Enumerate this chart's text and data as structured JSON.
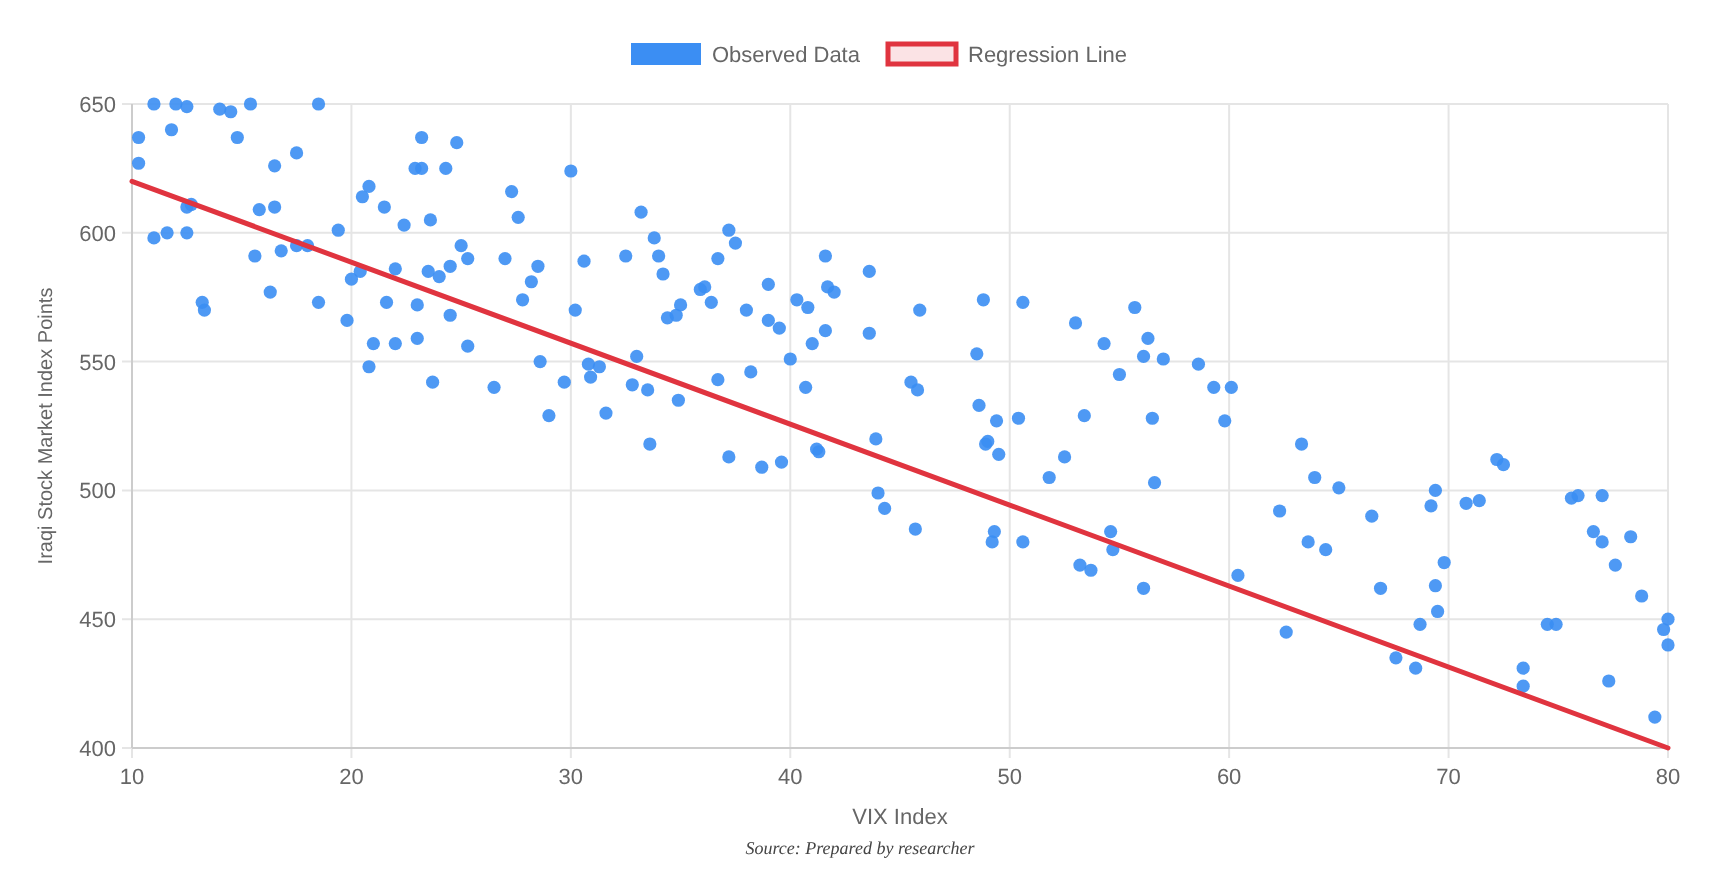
{
  "chart_data": {
    "type": "scatter",
    "xlabel": "VIX Index",
    "ylabel": "Iraqi Stock Market Index Points",
    "annotations": [
      "Source: Prepared by researcher"
    ],
    "xlim": [
      10,
      80
    ],
    "ylim": [
      400,
      650
    ],
    "xticks": [
      10,
      20,
      30,
      40,
      50,
      60,
      70,
      80
    ],
    "yticks": [
      400,
      450,
      500,
      550,
      600,
      650
    ],
    "grid": true,
    "legend": "top",
    "series": [
      {
        "name": "Observed Data",
        "marker": "circle",
        "color": "#3b8ef3",
        "x": [
          10.3,
          10.3,
          11,
          11.6,
          11,
          12,
          12.5,
          11.8,
          12.5,
          12.7,
          12.5,
          13.2,
          13.3,
          14,
          14.5,
          14.8,
          15.4,
          15.6,
          15.8,
          16.5,
          16.5,
          16.3,
          16.8,
          17.5,
          17.5,
          18,
          18.5,
          18.5,
          19.4,
          19.8,
          20,
          20.4,
          20.5,
          20.8,
          20.8,
          21,
          21.5,
          21.6,
          22,
          22,
          22.4,
          22.9,
          23,
          23,
          23.2,
          23.2,
          23.6,
          23.5,
          23.7,
          24,
          24.3,
          24.5,
          24.5,
          24.8,
          25,
          25.3,
          25.3,
          26.5,
          27,
          27.3,
          27.6,
          27.8,
          28.5,
          28.2,
          28.6,
          29,
          29.7,
          30,
          30.2,
          30.6,
          30.8,
          30.9,
          31.3,
          31.6,
          32.5,
          32.8,
          33,
          33.2,
          33.5,
          33.6,
          33.8,
          34,
          34.2,
          34.4,
          34.8,
          34.9,
          35,
          35.9,
          36.1,
          36.4,
          36.7,
          36.7,
          37.2,
          37.2,
          37.5,
          38,
          38.2,
          38.7,
          39,
          39,
          39.5,
          39.6,
          40,
          40.3,
          40.7,
          40.8,
          41,
          41.2,
          41.3,
          41.6,
          41.6,
          41.7,
          42,
          43.6,
          43.6,
          43.9,
          44,
          44.3,
          45.5,
          45.7,
          45.8,
          45.9,
          48.5,
          48.6,
          48.8,
          48.9,
          49.2,
          49,
          49.3,
          49.4,
          49.5,
          50.4,
          50.6,
          50.6,
          51.8,
          52.5,
          53,
          53.2,
          53.4,
          53.7,
          54.3,
          54.6,
          54.7,
          55,
          55.7,
          56.1,
          56.3,
          56.5,
          56.6,
          56.1,
          57,
          58.6,
          59.3,
          59.8,
          60.1,
          60.4,
          62.3,
          62.6,
          63.3,
          63.6,
          63.9,
          64.4,
          65,
          66.5,
          66.9,
          67.6,
          68.5,
          68.7,
          69.2,
          69.4,
          69.4,
          69.5,
          69.8,
          70.8,
          71.4,
          72.2,
          72.5,
          73.4,
          73.4,
          74.5,
          74.9,
          75.6,
          75.9,
          76.6,
          77,
          77,
          77.3,
          77.6,
          78.3,
          78.8,
          79.4,
          79.8,
          80,
          80
        ],
        "values": [
          637,
          627,
          598,
          600,
          650,
          650,
          649,
          640,
          610,
          611,
          600,
          573,
          570,
          648,
          647,
          637,
          650,
          591,
          609,
          626,
          610,
          577,
          593,
          631,
          595,
          595,
          650,
          573,
          601,
          566,
          582,
          585,
          614,
          618,
          548,
          557,
          610,
          573,
          586,
          557,
          603,
          625,
          572,
          559,
          637,
          625,
          605,
          585,
          542,
          583,
          625,
          587,
          568,
          635,
          595,
          590,
          556,
          540,
          590,
          616,
          606,
          574,
          587,
          581,
          550,
          529,
          542,
          624,
          570,
          589,
          549,
          544,
          548,
          530,
          591,
          541,
          552,
          608,
          539,
          518,
          598,
          591,
          584,
          567,
          568,
          535,
          572,
          578,
          579,
          573,
          590,
          543,
          601,
          513,
          596,
          570,
          546,
          509,
          580,
          566,
          563,
          511,
          551,
          574,
          540,
          571,
          557,
          516,
          515,
          591,
          562,
          579,
          577,
          585,
          561,
          520,
          499,
          493,
          542,
          485,
          539,
          570,
          553,
          533,
          574,
          518,
          480,
          519,
          484,
          527,
          514,
          528,
          573,
          480,
          505,
          513,
          565,
          471,
          529,
          469,
          557,
          484,
          477,
          545,
          571,
          552,
          559,
          528,
          503,
          462,
          551,
          549,
          540,
          527,
          540,
          467,
          492,
          445,
          518,
          480,
          505,
          477,
          501,
          490,
          462,
          435,
          431,
          448,
          494,
          500,
          463,
          453,
          472,
          495,
          496,
          512,
          510,
          431,
          424,
          448,
          448,
          497,
          498,
          484,
          498,
          480,
          426,
          471,
          482,
          459,
          412,
          446,
          450,
          440
        ]
      },
      {
        "name": "Regression Line",
        "type": "line",
        "color": "#e0343f",
        "x": [
          10,
          80
        ],
        "values": [
          620,
          400
        ]
      }
    ]
  }
}
